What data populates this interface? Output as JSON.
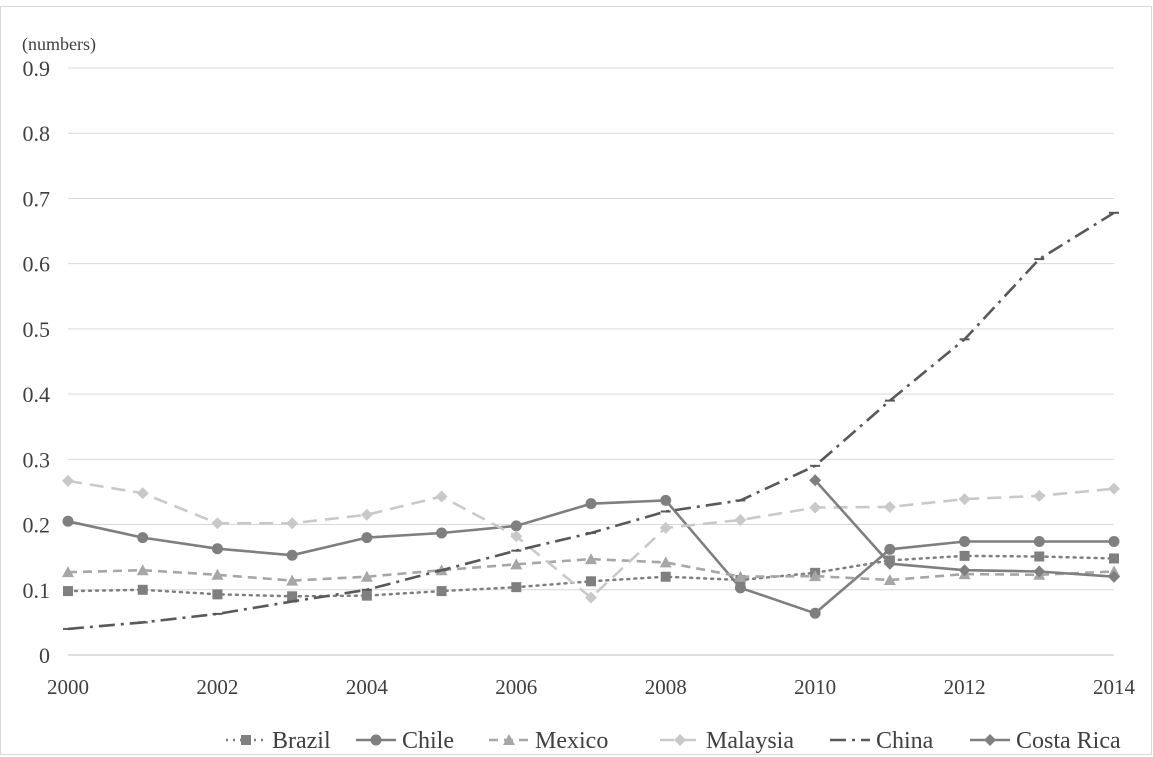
{
  "chart_data": {
    "type": "line",
    "unit_label": "(numbers)",
    "xlim": [
      2000,
      2014
    ],
    "ylim": [
      0,
      0.9
    ],
    "x_ticks": [
      "2000",
      "2002",
      "2004",
      "2006",
      "2008",
      "2010",
      "2012",
      "2014"
    ],
    "y_ticks": [
      "0",
      "0.1",
      "0.2",
      "0.3",
      "0.4",
      "0.5",
      "0.6",
      "0.7",
      "0.8",
      "0.9"
    ],
    "grid": "horizontal",
    "legend_position": "bottom",
    "x": [
      2000,
      2001,
      2002,
      2003,
      2004,
      2005,
      2006,
      2007,
      2008,
      2009,
      2010,
      2011,
      2012,
      2013,
      2014
    ],
    "series": [
      {
        "name": "Brazil",
        "color": "#7f7f7f",
        "dash": "dotted",
        "marker": "square",
        "values": [
          0.098,
          0.1,
          0.093,
          0.09,
          0.091,
          0.098,
          0.104,
          0.113,
          0.12,
          0.115,
          0.126,
          0.145,
          0.152,
          0.151,
          0.148
        ]
      },
      {
        "name": "Chile",
        "color": "#7f7f7f",
        "dash": "solid",
        "marker": "circle",
        "values": [
          0.205,
          0.18,
          0.163,
          0.153,
          0.18,
          0.187,
          0.198,
          0.232,
          0.237,
          0.103,
          0.064,
          0.162,
          0.174,
          0.174,
          0.174
        ]
      },
      {
        "name": "Mexico",
        "color": "#a6a6a6",
        "dash": "dashed",
        "marker": "triangle",
        "values": [
          0.127,
          0.13,
          0.123,
          0.114,
          0.12,
          0.13,
          0.139,
          0.147,
          0.142,
          0.12,
          0.121,
          0.115,
          0.124,
          0.123,
          0.128
        ]
      },
      {
        "name": "Malaysia",
        "color": "#c9c9c9",
        "dash": "longdash",
        "marker": "diamond",
        "values": [
          0.267,
          0.248,
          0.202,
          0.202,
          0.215,
          0.243,
          0.182,
          0.088,
          0.195,
          0.207,
          0.226,
          0.227,
          0.239,
          0.244,
          0.255
        ]
      },
      {
        "name": "China",
        "color": "#595959",
        "dash": "dashdot",
        "marker": "dash",
        "values": [
          0.04,
          0.05,
          0.063,
          0.082,
          0.1,
          0.13,
          0.16,
          0.187,
          0.22,
          0.237,
          0.29,
          0.39,
          0.484,
          0.607,
          0.678
        ]
      },
      {
        "name": "Costa Rica",
        "color": "#7f7f7f",
        "dash": "solid",
        "marker": "diamond",
        "values": [
          null,
          null,
          null,
          null,
          null,
          null,
          null,
          null,
          null,
          null,
          0.268,
          0.14,
          0.13,
          0.128,
          0.12
        ]
      }
    ]
  }
}
